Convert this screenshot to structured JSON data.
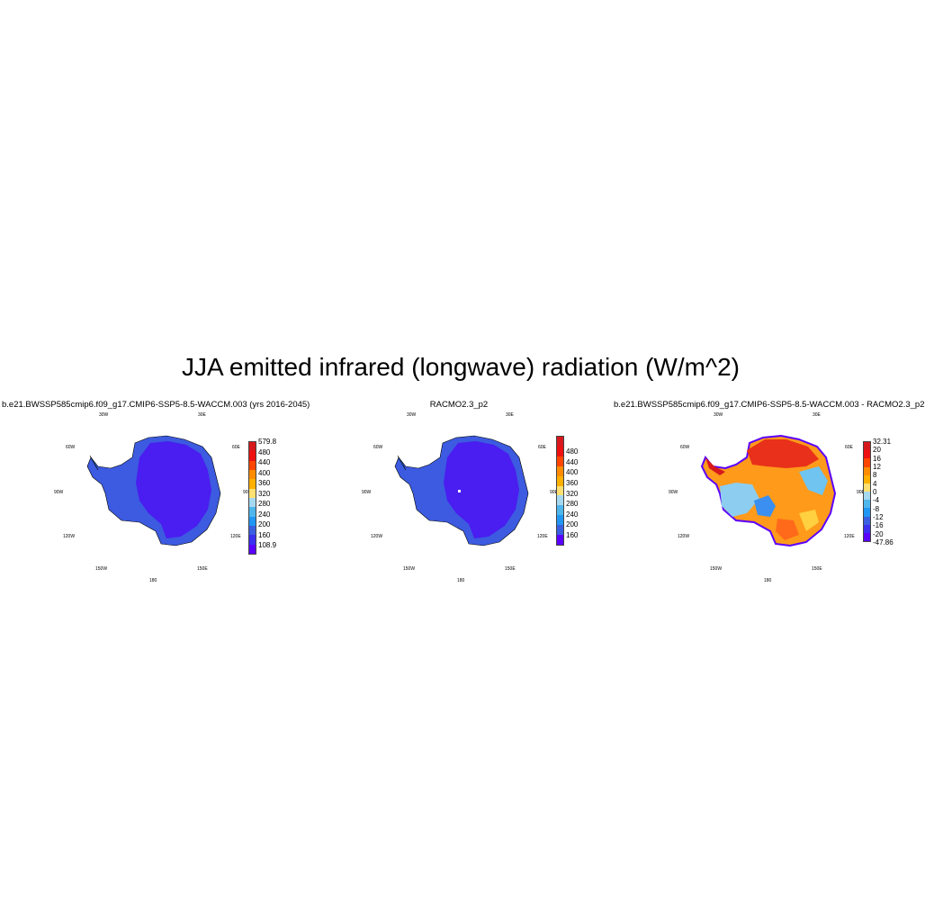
{
  "title": "JJA emitted infrared (longwave) radiation (W/m^2)",
  "panels": [
    {
      "title": "b.e21.BWSSP585cmip6.f09_g17.CMIP6-SSP5-8.5-WACCM.003 (yrs 2016-2045)",
      "lon_labels": [
        "30W",
        "30E",
        "60W",
        "60E",
        "90W",
        "90E",
        "120W",
        "120E",
        "150W",
        "150E",
        "180"
      ],
      "colorbar_colors": [
        "#d7191c",
        "#ee1111",
        "#ff4500",
        "#ff8c00",
        "#ffb000",
        "#ffe070",
        "#a6d8f0",
        "#4fb6ec",
        "#2196f3",
        "#3a5fe0",
        "#3b2ff0",
        "#5a00ff"
      ],
      "colorbar_labels": [
        "579.8",
        "480",
        "440",
        "400",
        "360",
        "320",
        "280",
        "240",
        "200",
        "160",
        "108.9"
      ],
      "fill_inner": "#4a1df0",
      "fill_outer": "#3c5be0"
    },
    {
      "title": "RACMO2.3_p2",
      "lon_labels": [
        "30W",
        "30E",
        "60W",
        "60E",
        "90W",
        "90E",
        "120W",
        "120E",
        "150W",
        "150E",
        "180"
      ],
      "colorbar_colors": [
        "#d7191c",
        "#ee1111",
        "#ff4500",
        "#ff8c00",
        "#ffb000",
        "#ffe070",
        "#a6d8f0",
        "#4fb6ec",
        "#2196f3",
        "#3a5fe0",
        "#5a00ff"
      ],
      "colorbar_labels": [
        "480",
        "440",
        "400",
        "360",
        "320",
        "280",
        "240",
        "200",
        "160"
      ],
      "fill_inner": "#4a1df0",
      "fill_outer": "#3c5be0"
    },
    {
      "title": "b.e21.BWSSP585cmip6.f09_g17.CMIP6-SSP5-8.5-WACCM.003 - RACMO2.3_p2",
      "lon_labels": [
        "30W",
        "30E",
        "60W",
        "60E",
        "90W",
        "90E",
        "120W",
        "120E",
        "150W",
        "150E",
        "180"
      ],
      "colorbar_colors": [
        "#d7191c",
        "#ee1111",
        "#ff4500",
        "#ff8c00",
        "#ffb000",
        "#ffe070",
        "#a6d8f0",
        "#4fb6ec",
        "#2196f3",
        "#3a5fe0",
        "#3b2ff0",
        "#5a00ff"
      ],
      "colorbar_labels": [
        "32.31",
        "20",
        "16",
        "12",
        "8",
        "4",
        "0",
        "-4",
        "-8",
        "-12",
        "-16",
        "-20",
        "-47.86"
      ],
      "fill_inner": "#ff9a1a",
      "fill_outer": "#e8501a"
    }
  ]
}
